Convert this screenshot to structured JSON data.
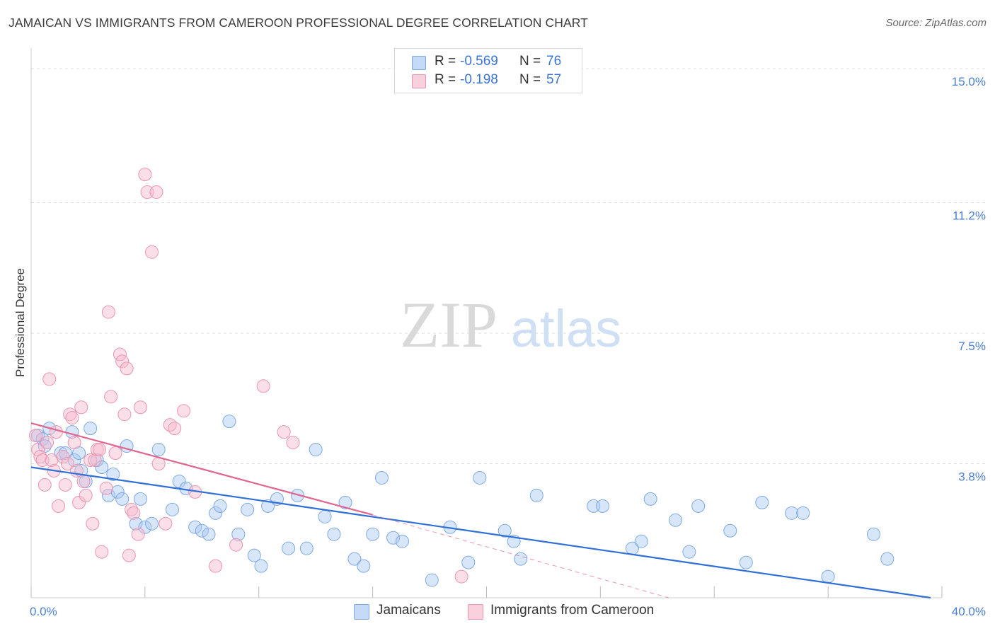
{
  "title": "JAMAICAN VS IMMIGRANTS FROM CAMEROON PROFESSIONAL DEGREE CORRELATION CHART",
  "source": "Source: ZipAtlas.com",
  "watermark": {
    "zip": "ZIP",
    "atlas": "atlas"
  },
  "legend": {
    "rows": [
      {
        "r_label": "R =",
        "r_value": "-0.569",
        "n_label": "N =",
        "n_value": "76",
        "color": "#a9c8f2"
      },
      {
        "r_label": "R =",
        "r_value": "-0.198",
        "n_label": "N =",
        "n_value": "57",
        "color": "#f6b8cb"
      }
    ]
  },
  "bottom_legend": [
    {
      "label": "Jamaicans",
      "color": "#a9c8f2"
    },
    {
      "label": "Immigrants from Cameroon",
      "color": "#f6b8cb"
    }
  ],
  "chart_data": {
    "type": "scatter",
    "title": "JAMAICAN VS IMMIGRANTS FROM CAMEROON PROFESSIONAL DEGREE CORRELATION CHART",
    "xlabel": "",
    "ylabel": "Professional Degree",
    "xlim": [
      0,
      40
    ],
    "ylim": [
      0,
      15.5
    ],
    "y_ticks": [
      {
        "value": 3.8,
        "label": "3.8%"
      },
      {
        "value": 7.5,
        "label": "7.5%"
      },
      {
        "value": 11.2,
        "label": "11.2%"
      },
      {
        "value": 15.0,
        "label": "15.0%"
      }
    ],
    "x_tick_labels": [
      {
        "value": 0,
        "label": "0.0%"
      },
      {
        "value": 40,
        "label": "40.0%"
      }
    ],
    "grid": true,
    "series": [
      {
        "name": "Jamaicans",
        "color": "#a9c8f2",
        "stroke": "#7ea9e6",
        "line_color": "#2f6fd6",
        "trend": {
          "x": [
            0,
            39.5
          ],
          "y": [
            3.7,
            0.0
          ]
        },
        "points": [
          [
            0.3,
            4.6
          ],
          [
            0.5,
            4.5
          ],
          [
            0.6,
            4.3
          ],
          [
            0.8,
            4.8
          ],
          [
            1.3,
            4.1
          ],
          [
            1.5,
            4.1
          ],
          [
            1.8,
            4.7
          ],
          [
            1.9,
            3.9
          ],
          [
            2.1,
            4.1
          ],
          [
            2.2,
            3.6
          ],
          [
            2.4,
            3.3
          ],
          [
            2.6,
            4.8
          ],
          [
            2.9,
            3.9
          ],
          [
            3.1,
            3.7
          ],
          [
            3.4,
            2.9
          ],
          [
            3.6,
            3.5
          ],
          [
            3.8,
            3.0
          ],
          [
            4.0,
            2.8
          ],
          [
            4.2,
            4.3
          ],
          [
            4.6,
            2.1
          ],
          [
            4.8,
            2.8
          ],
          [
            5.0,
            2.0
          ],
          [
            5.3,
            2.1
          ],
          [
            5.6,
            4.2
          ],
          [
            6.2,
            2.5
          ],
          [
            6.5,
            3.3
          ],
          [
            6.8,
            3.1
          ],
          [
            7.2,
            2.0
          ],
          [
            7.5,
            1.9
          ],
          [
            7.8,
            1.8
          ],
          [
            8.1,
            2.4
          ],
          [
            8.3,
            2.6
          ],
          [
            8.7,
            5.0
          ],
          [
            9.1,
            1.8
          ],
          [
            9.5,
            2.5
          ],
          [
            9.8,
            1.2
          ],
          [
            10.1,
            0.9
          ],
          [
            10.4,
            2.6
          ],
          [
            10.8,
            2.8
          ],
          [
            11.3,
            1.4
          ],
          [
            11.7,
            2.9
          ],
          [
            12.1,
            1.4
          ],
          [
            12.5,
            4.2
          ],
          [
            12.9,
            2.3
          ],
          [
            13.3,
            1.8
          ],
          [
            13.8,
            2.7
          ],
          [
            14.2,
            1.1
          ],
          [
            14.6,
            0.9
          ],
          [
            15.0,
            1.8
          ],
          [
            15.4,
            3.4
          ],
          [
            15.9,
            1.7
          ],
          [
            16.3,
            1.6
          ],
          [
            17.6,
            0.5
          ],
          [
            18.4,
            2.0
          ],
          [
            19.2,
            1.0
          ],
          [
            19.7,
            3.4
          ],
          [
            20.8,
            1.9
          ],
          [
            21.2,
            1.6
          ],
          [
            21.5,
            1.1
          ],
          [
            22.2,
            2.9
          ],
          [
            24.7,
            2.6
          ],
          [
            25.1,
            2.6
          ],
          [
            26.4,
            1.4
          ],
          [
            26.8,
            1.6
          ],
          [
            27.2,
            2.8
          ],
          [
            28.3,
            2.2
          ],
          [
            28.9,
            1.3
          ],
          [
            29.3,
            2.6
          ],
          [
            30.7,
            1.9
          ],
          [
            31.4,
            1.0
          ],
          [
            32.1,
            2.7
          ],
          [
            33.4,
            2.4
          ],
          [
            33.9,
            2.4
          ],
          [
            35.0,
            0.6
          ],
          [
            37.0,
            1.8
          ],
          [
            37.6,
            1.1
          ]
        ]
      },
      {
        "name": "Immigrants from Cameroon",
        "color": "#f6b8cb",
        "stroke": "#ec94ae",
        "line_color": "#e0658f",
        "trend": {
          "x": [
            0,
            15.0
          ],
          "y": [
            4.95,
            2.35
          ]
        },
        "trend_dashed": {
          "x": [
            15.0,
            28.0
          ],
          "y": [
            2.35,
            0.0
          ]
        },
        "points": [
          [
            0.2,
            4.6
          ],
          [
            0.3,
            4.2
          ],
          [
            0.4,
            4.0
          ],
          [
            0.5,
            3.9
          ],
          [
            0.6,
            3.2
          ],
          [
            0.7,
            4.4
          ],
          [
            0.8,
            6.2
          ],
          [
            0.9,
            3.9
          ],
          [
            1.0,
            3.6
          ],
          [
            1.1,
            4.7
          ],
          [
            1.2,
            2.6
          ],
          [
            1.4,
            4.0
          ],
          [
            1.5,
            3.2
          ],
          [
            1.6,
            3.8
          ],
          [
            1.7,
            5.2
          ],
          [
            1.8,
            5.1
          ],
          [
            1.9,
            4.4
          ],
          [
            2.0,
            3.6
          ],
          [
            2.1,
            2.7
          ],
          [
            2.2,
            5.4
          ],
          [
            2.3,
            3.3
          ],
          [
            2.4,
            2.9
          ],
          [
            2.6,
            3.9
          ],
          [
            2.7,
            2.1
          ],
          [
            2.8,
            3.9
          ],
          [
            2.9,
            4.2
          ],
          [
            3.0,
            4.2
          ],
          [
            3.1,
            1.3
          ],
          [
            3.3,
            3.1
          ],
          [
            3.4,
            8.1
          ],
          [
            3.5,
            5.7
          ],
          [
            3.7,
            4.1
          ],
          [
            3.9,
            6.9
          ],
          [
            4.0,
            6.7
          ],
          [
            4.1,
            5.2
          ],
          [
            4.2,
            6.5
          ],
          [
            4.3,
            1.2
          ],
          [
            4.4,
            2.5
          ],
          [
            4.5,
            2.4
          ],
          [
            4.7,
            1.8
          ],
          [
            4.8,
            5.4
          ],
          [
            5.0,
            12.0
          ],
          [
            5.1,
            11.5
          ],
          [
            5.3,
            9.8
          ],
          [
            5.5,
            11.5
          ],
          [
            5.6,
            3.8
          ],
          [
            5.9,
            2.1
          ],
          [
            6.1,
            4.9
          ],
          [
            6.3,
            4.8
          ],
          [
            6.7,
            5.3
          ],
          [
            7.2,
            3.0
          ],
          [
            8.1,
            0.9
          ],
          [
            9.0,
            1.5
          ],
          [
            10.2,
            6.0
          ],
          [
            11.1,
            4.7
          ],
          [
            11.5,
            4.4
          ],
          [
            18.9,
            0.6
          ]
        ]
      }
    ]
  }
}
